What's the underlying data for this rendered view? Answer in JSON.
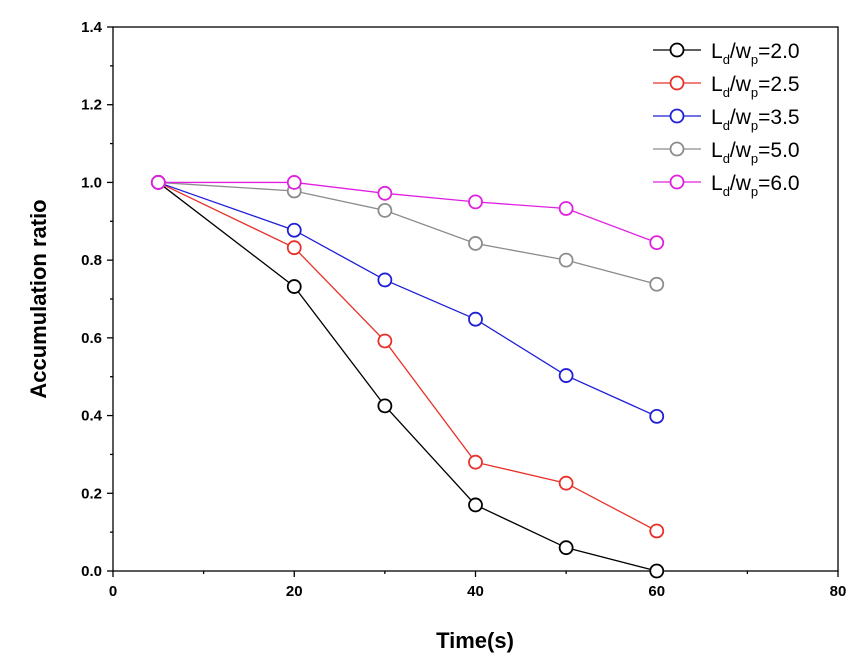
{
  "chart_data": {
    "type": "line",
    "xlabel": "Time(s)",
    "ylabel": "Accumulation ratio",
    "xlim": [
      0,
      80
    ],
    "ylim": [
      0,
      1.4
    ],
    "x_ticks": [
      "0",
      "20",
      "40",
      "60",
      "80"
    ],
    "y_ticks": [
      "0.0",
      "0.2",
      "0.4",
      "0.6",
      "0.8",
      "1.0",
      "1.2",
      "1.4"
    ],
    "grid": false,
    "legend_position": "top-right",
    "x": [
      5,
      20,
      30,
      40,
      50,
      60
    ],
    "series": [
      {
        "name": "Ld/wp=2.0",
        "label": {
          "a": "L",
          "a_sub": "d",
          "b": "/w",
          "b_sub": "p",
          "value": "=2.0"
        },
        "color": "#000000",
        "marker_color": "#000000",
        "values": [
          1.0,
          0.732,
          0.425,
          0.17,
          0.06,
          0.0
        ]
      },
      {
        "name": "Ld/wp=2.5",
        "label": {
          "a": "L",
          "a_sub": "d",
          "b": "/w",
          "b_sub": "p",
          "value": "=2.5"
        },
        "color": "#e8312a",
        "marker_color": "#e8312a",
        "values": [
          1.0,
          0.832,
          0.592,
          0.28,
          0.226,
          0.103
        ]
      },
      {
        "name": "Ld/wp=3.5",
        "label": {
          "a": "L",
          "a_sub": "d",
          "b": "/w",
          "b_sub": "p",
          "value": "=3.5"
        },
        "color": "#1f1fd6",
        "marker_color": "#1f1fd6",
        "values": [
          1.0,
          0.877,
          0.749,
          0.648,
          0.503,
          0.398
        ]
      },
      {
        "name": "Ld/wp=5.0",
        "label": {
          "a": "L",
          "a_sub": "d",
          "b": "/w",
          "b_sub": "p",
          "value": "=5.0"
        },
        "color": "#8c8c8c",
        "marker_color": "#8c8c8c",
        "values": [
          1.0,
          0.978,
          0.928,
          0.843,
          0.8,
          0.738
        ]
      },
      {
        "name": "Ld/wp=6.0",
        "label": {
          "a": "L",
          "a_sub": "d",
          "b": "/w",
          "b_sub": "p",
          "value": "=6.0"
        },
        "color": "#e020e0",
        "marker_color": "#e020e0",
        "values": [
          1.0,
          1.0,
          0.972,
          0.95,
          0.933,
          0.845
        ]
      }
    ]
  }
}
